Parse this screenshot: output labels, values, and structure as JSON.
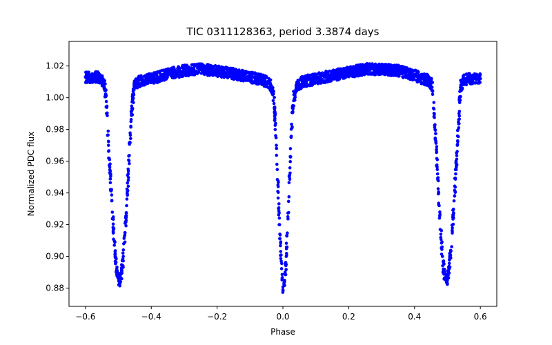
{
  "chart_data": {
    "type": "scatter",
    "title": "TIC 0311128363, period 3.3874 days",
    "xlabel": "Phase",
    "ylabel": "Normalized PDC flux",
    "xlim": [
      -0.65,
      0.65
    ],
    "ylim": [
      0.8685,
      1.0355
    ],
    "xticks": [
      -0.6,
      -0.4,
      -0.2,
      0.0,
      0.2,
      0.4,
      0.6
    ],
    "xtick_labels": [
      "−0.6",
      "−0.4",
      "−0.2",
      "0.0",
      "0.2",
      "0.4",
      "0.6"
    ],
    "yticks": [
      0.88,
      0.9,
      0.92,
      0.94,
      0.96,
      0.98,
      1.0,
      1.02
    ],
    "ytick_labels": [
      "0.88",
      "0.90",
      "0.92",
      "0.94",
      "0.96",
      "0.98",
      "1.00",
      "1.02"
    ],
    "grid": false,
    "marker_color": "#0000ff",
    "series": [
      {
        "x": [
          -0.6,
          -0.58,
          -0.56,
          -0.55,
          -0.54,
          -0.535,
          -0.53,
          -0.525,
          -0.52,
          -0.515,
          -0.51,
          -0.505,
          -0.5,
          -0.495,
          -0.49,
          -0.485,
          -0.48,
          -0.475,
          -0.47,
          -0.465,
          -0.46,
          -0.455,
          -0.45,
          -0.44,
          -0.42,
          -0.4,
          -0.35,
          -0.3,
          -0.25,
          -0.2,
          -0.15,
          -0.1,
          -0.06,
          -0.04,
          -0.03,
          -0.025,
          -0.02,
          -0.015,
          -0.01,
          -0.005,
          0.0,
          0.005,
          0.01,
          0.015,
          0.02,
          0.025,
          0.03,
          0.04,
          0.06,
          0.1,
          0.15,
          0.2,
          0.25,
          0.3,
          0.35,
          0.4,
          0.44,
          0.45,
          0.455,
          0.46,
          0.465,
          0.47,
          0.475,
          0.48,
          0.485,
          0.49,
          0.495,
          0.5,
          0.505,
          0.51,
          0.515,
          0.52,
          0.525,
          0.53,
          0.535,
          0.54,
          0.55,
          0.56,
          0.58,
          0.6
        ],
        "y": [
          1.013,
          1.013,
          1.013,
          1.012,
          1.005,
          0.99,
          0.97,
          0.952,
          0.935,
          0.918,
          0.903,
          0.892,
          0.886,
          0.885,
          0.89,
          0.9,
          0.915,
          0.932,
          0.952,
          0.972,
          0.99,
          1.002,
          1.008,
          1.01,
          1.011,
          1.012,
          1.015,
          1.017,
          1.018,
          1.017,
          1.015,
          1.013,
          1.011,
          1.009,
          1.003,
          0.99,
          0.97,
          0.945,
          0.92,
          0.897,
          0.879,
          0.884,
          0.9,
          0.925,
          0.95,
          0.975,
          0.995,
          1.007,
          1.01,
          1.012,
          1.014,
          1.016,
          1.018,
          1.018,
          1.017,
          1.014,
          1.011,
          1.009,
          1.004,
          0.99,
          0.972,
          0.952,
          0.932,
          0.914,
          0.9,
          0.89,
          0.885,
          0.886,
          0.892,
          0.903,
          0.918,
          0.935,
          0.952,
          0.97,
          0.99,
          1.005,
          1.011,
          1.012,
          1.012,
          1.012
        ]
      }
    ]
  }
}
